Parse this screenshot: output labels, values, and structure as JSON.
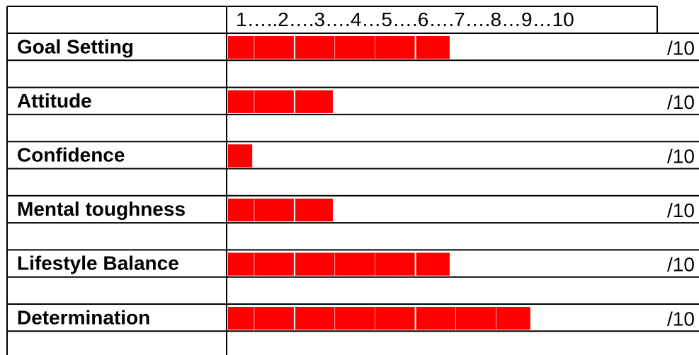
{
  "scale_header": "1…..2….3….4…5….6….7….8…9…10",
  "suffix": "/10",
  "colors": {
    "bar": "#ff0000",
    "segment_divider": "#ffffff",
    "grid": "#000000",
    "background": "#ffffff"
  },
  "chart_data": {
    "type": "bar",
    "orientation": "horizontal",
    "categories": [
      "Goal Setting",
      "Attitude",
      "Confidence",
      "Mental toughness",
      "Lifestyle Balance",
      "Determination"
    ],
    "values": [
      5.5,
      2.6,
      0.6,
      2.6,
      5.5,
      7.5
    ],
    "xlim": [
      0,
      10
    ],
    "tick_header": "1…..2….3….4…5….6….7….8…9…10",
    "value_suffix": "/10",
    "grid": true
  }
}
